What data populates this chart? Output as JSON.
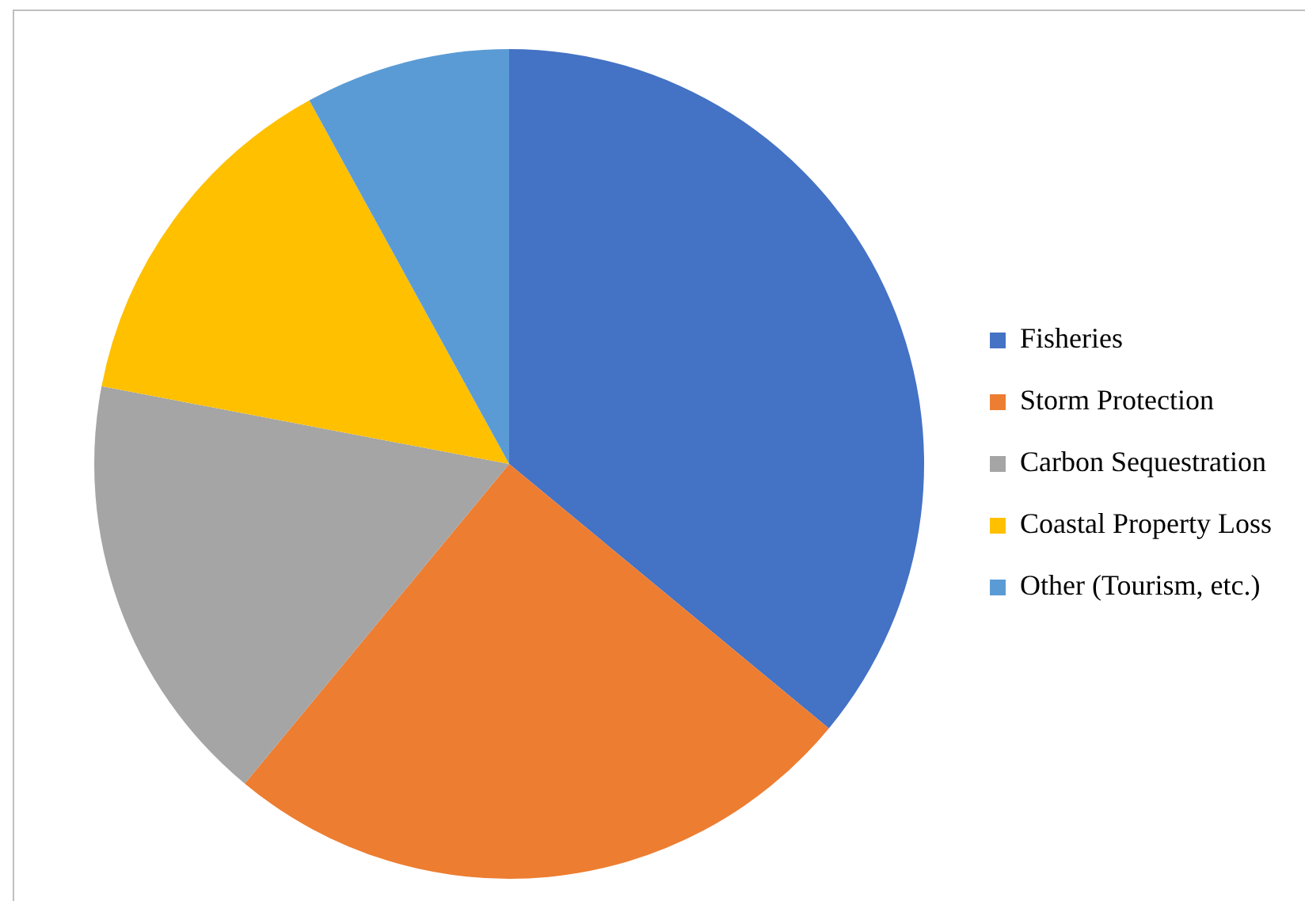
{
  "chart_data": {
    "type": "pie",
    "categories": [
      "Fisheries",
      "Storm Protection",
      "Carbon Sequestration",
      "Coastal Property Loss",
      "Other (Tourism, etc.)"
    ],
    "values": [
      36,
      25,
      17,
      14,
      8
    ],
    "colors": [
      "#4472c4",
      "#ed7d31",
      "#a5a5a5",
      "#ffc000",
      "#5b9bd5"
    ],
    "legend": "right"
  }
}
